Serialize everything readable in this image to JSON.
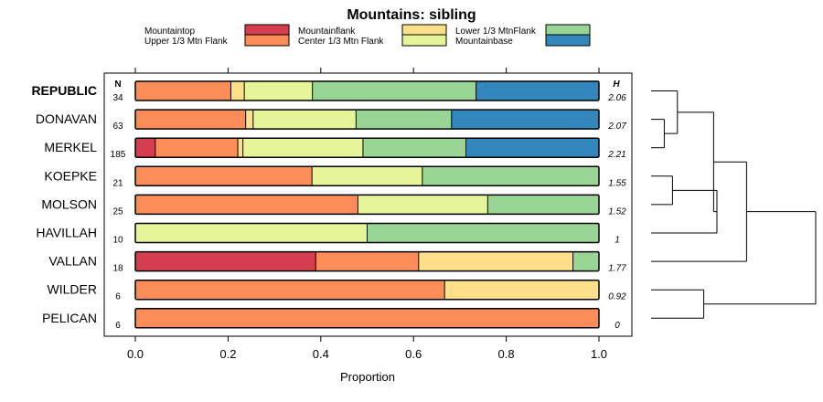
{
  "chart_data": {
    "type": "bar",
    "subtype": "stacked-horizontal-proportion",
    "title": "Mountains: sibling",
    "xlabel": "Proportion",
    "ylabel": "",
    "xlim": [
      0,
      1
    ],
    "x_ticks": [
      "0.0",
      "0.2",
      "0.4",
      "0.6",
      "0.8",
      "1.0"
    ],
    "n_header": "N",
    "h_header": "H",
    "series": [
      {
        "name": "Mountaintop",
        "color": "#d53e4f"
      },
      {
        "name": "Upper 1/3 Mtn Flank",
        "color": "#fc8d59"
      },
      {
        "name": "Mountainflank",
        "color": "#fee08b"
      },
      {
        "name": "Center 1/3 Mtn Flank",
        "color": "#e6f598"
      },
      {
        "name": "Lower 1/3 MtnFlank",
        "color": "#99d594"
      },
      {
        "name": "Mountainbase",
        "color": "#3288bd"
      }
    ],
    "rows": [
      {
        "label": "REPUBLIC",
        "bold": true,
        "n": "34",
        "h": "2.06",
        "values": [
          0.0,
          0.206,
          0.029,
          0.147,
          0.353,
          0.265
        ]
      },
      {
        "label": "DONAVAN",
        "bold": false,
        "n": "63",
        "h": "2.07",
        "values": [
          0.0,
          0.238,
          0.016,
          0.222,
          0.206,
          0.318
        ]
      },
      {
        "label": "MERKEL",
        "bold": false,
        "n": "185",
        "h": "2.21",
        "values": [
          0.043,
          0.178,
          0.011,
          0.259,
          0.222,
          0.287
        ]
      },
      {
        "label": "KOEPKE",
        "bold": false,
        "n": "21",
        "h": "1.55",
        "values": [
          0.0,
          0.381,
          0.0,
          0.238,
          0.381,
          0.0
        ]
      },
      {
        "label": "MOLSON",
        "bold": false,
        "n": "25",
        "h": "1.52",
        "values": [
          0.0,
          0.48,
          0.0,
          0.28,
          0.24,
          0.0
        ]
      },
      {
        "label": "HAVILLAH",
        "bold": false,
        "n": "10",
        "h": "1",
        "values": [
          0.0,
          0.0,
          0.0,
          0.5,
          0.5,
          0.0
        ]
      },
      {
        "label": "VALLAN",
        "bold": false,
        "n": "18",
        "h": "1.77",
        "values": [
          0.389,
          0.222,
          0.333,
          0.0,
          0.056,
          0.0
        ]
      },
      {
        "label": "WILDER",
        "bold": false,
        "n": "6",
        "h": "0.92",
        "values": [
          0.0,
          0.667,
          0.333,
          0.0,
          0.0,
          0.0
        ]
      },
      {
        "label": "PELICAN",
        "bold": false,
        "n": "6",
        "h": "0",
        "values": [
          0.0,
          1.0,
          0.0,
          0.0,
          0.0,
          0.0
        ]
      }
    ],
    "dendrogram": {
      "description": "hierarchical clustering of rows",
      "merges": [
        {
          "a": "DONAVAN",
          "b": "MERKEL",
          "height": 0.08
        },
        {
          "a": "REPUBLIC",
          "b": "DONAVAN+MERKEL",
          "height": 0.16
        },
        {
          "a": "KOEPKE",
          "b": "MOLSON",
          "height": 0.13
        },
        {
          "a": "KOEPKE+MOLSON",
          "b": "HAVILLAH",
          "height": 0.4
        },
        {
          "a": "REPUBLIC+DONAVAN+MERKEL",
          "b": "KOEPKE+MOLSON+HAVILLAH",
          "height": 0.38
        },
        {
          "a": "upper",
          "b": "VALLAN",
          "height": 0.58
        },
        {
          "a": "WILDER",
          "b": "PELICAN",
          "height": 0.32
        },
        {
          "a": "upper+VALLAN",
          "b": "WILDER+PELICAN",
          "height": 1.0
        }
      ]
    }
  }
}
